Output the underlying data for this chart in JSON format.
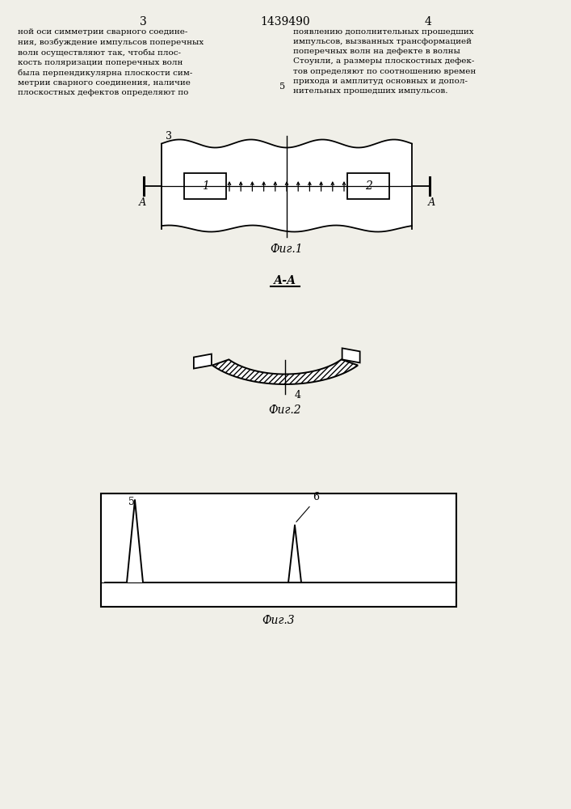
{
  "bg_color": "#f0efe8",
  "page_number_left": "3",
  "page_number_center": "1439490",
  "page_number_right": "4",
  "text_left": "ной оси симметрии сварного соедине-\nния, возбуждение импульсов поперечных\nволн осуществляют так, чтобы плос-\nкость поляризации поперечных волн\nбыла перпендикулярна плоскости сим-\nметрии сварного соединения, наличие\nплоскостных дефектов определяют по",
  "text_right": "появлению дополнительных прошедших\nимпульсов, вызванных трансформацией\nпоперечных волн на дефекте в волны\nСтоунли, а размеры плоскостных дефек-\nтов определяют по соотношению времен\nприхода и амплитуд основных и допол-\nнительных прошедших импульсов.",
  "line_number": "5",
  "fig1_caption": "Фиг.1",
  "fig2_caption": "Фиг.2",
  "fig3_caption": "Фиг.3",
  "aa_label": "А-А",
  "label_3": "3",
  "label_1": "1",
  "label_2": "2",
  "label_4": "4",
  "label_5": "5",
  "label_6": "6",
  "label_A_left": "А",
  "label_A_right": "А"
}
